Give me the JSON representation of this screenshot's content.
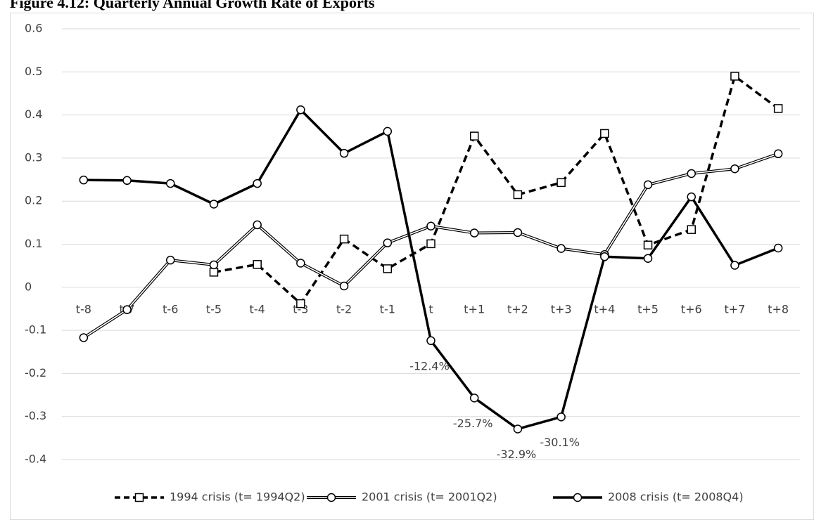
{
  "chart_data": {
    "type": "line",
    "title": "Figure 4.12: Quarterly Annual Growth Rate of Exports",
    "categories": [
      "t-8",
      "t-7",
      "t-6",
      "t-5",
      "t-4",
      "t-3",
      "t-2",
      "t-1",
      "t",
      "t+1",
      "t+2",
      "t+3",
      "t+4",
      "t+5",
      "t+6",
      "t+7",
      "t+8"
    ],
    "series": [
      {
        "name": "1994 crisis (t= 1994Q2)",
        "color": "#000000",
        "line_style": "dashed",
        "marker": "square",
        "values": [
          null,
          null,
          null,
          0.035,
          0.053,
          -0.038,
          0.112,
          0.043,
          0.101,
          0.351,
          0.215,
          0.243,
          0.357,
          0.098,
          0.134,
          0.49,
          0.415
        ]
      },
      {
        "name": "2001 crisis (t= 2001Q2)",
        "color": "#000000",
        "line_style": "double",
        "marker": "circle",
        "values": [
          -0.117,
          -0.052,
          0.063,
          0.052,
          0.145,
          0.056,
          0.003,
          0.103,
          0.142,
          0.126,
          0.127,
          0.09,
          0.076,
          0.238,
          0.264,
          0.275,
          0.31
        ]
      },
      {
        "name": "2008 crisis (t= 2008Q4)",
        "color": "#000000",
        "line_style": "solid",
        "marker": "circle",
        "values": [
          0.249,
          0.248,
          0.241,
          0.193,
          0.241,
          0.412,
          0.311,
          0.362,
          -0.124,
          -0.257,
          -0.329,
          -0.301,
          0.071,
          0.067,
          0.21,
          0.051,
          0.091
        ],
        "value_labels": [
          null,
          null,
          null,
          null,
          null,
          null,
          null,
          null,
          "-12.4%",
          "-25.7%",
          "-32.9%",
          "-30.1%",
          null,
          null,
          null,
          null,
          null
        ]
      }
    ],
    "ylim": [
      -0.4,
      0.6
    ],
    "yticks": [
      -0.4,
      -0.3,
      -0.2,
      -0.1,
      0,
      0.1,
      0.2,
      0.3,
      0.4,
      0.5,
      0.6
    ],
    "grid": true,
    "legend": "bottom"
  }
}
